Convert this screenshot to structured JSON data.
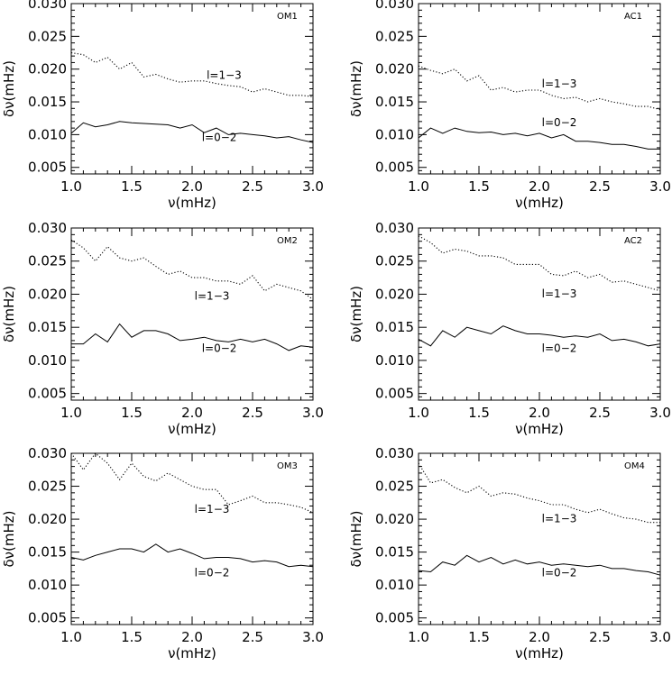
{
  "figure": {
    "x_axis_label": "ν(mHz)",
    "y_axis_label": "δν(mHz)"
  },
  "chart_data": [
    {
      "type": "line",
      "panel_label": "OM1",
      "xlim": [
        1.0,
        3.0
      ],
      "ylim": [
        0.004,
        0.03
      ],
      "xticks": [
        "1.0",
        "1.5",
        "2.0",
        "2.5",
        "3.0"
      ],
      "yticks": [
        "0.005",
        "0.010",
        "0.015",
        "0.020",
        "0.025",
        "0.030"
      ],
      "series": [
        {
          "name": "l=1−3",
          "style": "dotted",
          "x": [
            1.0,
            1.1,
            1.2,
            1.3,
            1.4,
            1.5,
            1.6,
            1.7,
            1.8,
            1.9,
            2.0,
            2.1,
            2.2,
            2.3,
            2.4,
            2.5,
            2.6,
            2.7,
            2.8,
            2.9,
            3.0
          ],
          "y": [
            0.0225,
            0.0222,
            0.021,
            0.0218,
            0.02,
            0.021,
            0.0188,
            0.0192,
            0.0185,
            0.018,
            0.0182,
            0.0182,
            0.0178,
            0.0175,
            0.0173,
            0.0165,
            0.017,
            0.0165,
            0.016,
            0.016,
            0.0158
          ],
          "label_at": [
            2.12,
            0.0185
          ]
        },
        {
          "name": "l=0−2",
          "style": "solid",
          "x": [
            1.0,
            1.1,
            1.2,
            1.3,
            1.4,
            1.5,
            1.6,
            1.7,
            1.8,
            1.9,
            2.0,
            2.1,
            2.2,
            2.3,
            2.4,
            2.5,
            2.6,
            2.7,
            2.8,
            2.9,
            3.0
          ],
          "y": [
            0.0102,
            0.0118,
            0.0112,
            0.0115,
            0.012,
            0.0118,
            0.0117,
            0.0116,
            0.0115,
            0.011,
            0.0115,
            0.0103,
            0.011,
            0.01,
            0.0102,
            0.01,
            0.0098,
            0.0095,
            0.0097,
            0.0092,
            0.0088
          ],
          "label_at": [
            2.08,
            0.009
          ]
        }
      ]
    },
    {
      "type": "line",
      "panel_label": "AC1",
      "xlim": [
        1.0,
        3.0
      ],
      "ylim": [
        0.004,
        0.03
      ],
      "xticks": [
        "1.0",
        "1.5",
        "2.0",
        "2.5",
        "3.0"
      ],
      "yticks": [
        "0.005",
        "0.010",
        "0.015",
        "0.020",
        "0.025",
        "0.030"
      ],
      "series": [
        {
          "name": "l=1−3",
          "style": "dotted",
          "x": [
            1.0,
            1.1,
            1.2,
            1.3,
            1.4,
            1.5,
            1.6,
            1.7,
            1.8,
            1.9,
            2.0,
            2.1,
            2.2,
            2.3,
            2.4,
            2.5,
            2.6,
            2.7,
            2.8,
            2.9,
            3.0
          ],
          "y": [
            0.0205,
            0.0198,
            0.0193,
            0.02,
            0.0182,
            0.019,
            0.0168,
            0.0172,
            0.0165,
            0.0168,
            0.0168,
            0.016,
            0.0155,
            0.0157,
            0.015,
            0.0155,
            0.015,
            0.0147,
            0.0143,
            0.0143,
            0.0138
          ],
          "label_at": [
            2.02,
            0.0172
          ]
        },
        {
          "name": "l=0−2",
          "style": "solid",
          "x": [
            1.0,
            1.1,
            1.2,
            1.3,
            1.4,
            1.5,
            1.6,
            1.7,
            1.8,
            1.9,
            2.0,
            2.1,
            2.2,
            2.3,
            2.4,
            2.5,
            2.6,
            2.7,
            2.8,
            2.9,
            3.0
          ],
          "y": [
            0.0095,
            0.011,
            0.0102,
            0.011,
            0.0105,
            0.0103,
            0.0104,
            0.01,
            0.0102,
            0.0098,
            0.0102,
            0.0095,
            0.01,
            0.009,
            0.009,
            0.0088,
            0.0085,
            0.0085,
            0.0082,
            0.0078,
            0.0078
          ],
          "label_at": [
            2.02,
            0.0113
          ]
        }
      ]
    },
    {
      "type": "line",
      "panel_label": "OM2",
      "xlim": [
        1.0,
        3.0
      ],
      "ylim": [
        0.004,
        0.03
      ],
      "xticks": [
        "1.0",
        "1.5",
        "2.0",
        "2.5",
        "3.0"
      ],
      "yticks": [
        "0.005",
        "0.010",
        "0.015",
        "0.020",
        "0.025",
        "0.030"
      ],
      "series": [
        {
          "name": "l=1−3",
          "style": "dotted",
          "x": [
            1.0,
            1.1,
            1.2,
            1.3,
            1.4,
            1.5,
            1.6,
            1.7,
            1.8,
            1.9,
            2.0,
            2.1,
            2.2,
            2.3,
            2.4,
            2.5,
            2.6,
            2.7,
            2.8,
            2.9,
            3.0
          ],
          "y": [
            0.0282,
            0.027,
            0.025,
            0.0272,
            0.0255,
            0.025,
            0.0255,
            0.0242,
            0.023,
            0.0235,
            0.0225,
            0.0225,
            0.022,
            0.022,
            0.0215,
            0.0228,
            0.0205,
            0.0215,
            0.021,
            0.0205,
            0.0192
          ],
          "label_at": [
            2.02,
            0.0192
          ]
        },
        {
          "name": "l=0−2",
          "style": "solid",
          "x": [
            1.0,
            1.1,
            1.2,
            1.3,
            1.4,
            1.5,
            1.6,
            1.7,
            1.8,
            1.9,
            2.0,
            2.1,
            2.2,
            2.3,
            2.4,
            2.5,
            2.6,
            2.7,
            2.8,
            2.9,
            3.0
          ],
          "y": [
            0.0125,
            0.0125,
            0.014,
            0.0128,
            0.0155,
            0.0135,
            0.0145,
            0.0145,
            0.014,
            0.013,
            0.0132,
            0.0135,
            0.013,
            0.0128,
            0.0132,
            0.0128,
            0.0132,
            0.0125,
            0.0115,
            0.0122,
            0.012
          ],
          "label_at": [
            2.08,
            0.0113
          ]
        }
      ]
    },
    {
      "type": "line",
      "panel_label": "AC2",
      "xlim": [
        1.0,
        3.0
      ],
      "ylim": [
        0.004,
        0.03
      ],
      "xticks": [
        "1.0",
        "1.5",
        "2.0",
        "2.5",
        "3.0"
      ],
      "yticks": [
        "0.005",
        "0.010",
        "0.015",
        "0.020",
        "0.025",
        "0.030"
      ],
      "series": [
        {
          "name": "l=1−3",
          "style": "dotted",
          "x": [
            1.0,
            1.1,
            1.2,
            1.3,
            1.4,
            1.5,
            1.6,
            1.7,
            1.8,
            1.9,
            2.0,
            2.1,
            2.2,
            2.3,
            2.4,
            2.5,
            2.6,
            2.7,
            2.8,
            2.9,
            3.0
          ],
          "y": [
            0.0288,
            0.0278,
            0.0262,
            0.0268,
            0.0265,
            0.0258,
            0.0258,
            0.0255,
            0.0245,
            0.0245,
            0.0245,
            0.023,
            0.0228,
            0.0235,
            0.0225,
            0.023,
            0.0218,
            0.022,
            0.0215,
            0.021,
            0.0205
          ],
          "label_at": [
            2.02,
            0.0195
          ]
        },
        {
          "name": "l=0−2",
          "style": "solid",
          "x": [
            1.0,
            1.1,
            1.2,
            1.3,
            1.4,
            1.5,
            1.6,
            1.7,
            1.8,
            1.9,
            2.0,
            2.1,
            2.2,
            2.3,
            2.4,
            2.5,
            2.6,
            2.7,
            2.8,
            2.9,
            3.0
          ],
          "y": [
            0.0132,
            0.0122,
            0.0145,
            0.0135,
            0.015,
            0.0145,
            0.014,
            0.0152,
            0.0145,
            0.014,
            0.014,
            0.0138,
            0.0135,
            0.0137,
            0.0135,
            0.014,
            0.013,
            0.0132,
            0.0128,
            0.0122,
            0.0125
          ],
          "label_at": [
            2.02,
            0.0113
          ]
        }
      ]
    },
    {
      "type": "line",
      "panel_label": "OM3",
      "xlim": [
        1.0,
        3.0
      ],
      "ylim": [
        0.004,
        0.03
      ],
      "xticks": [
        "1.0",
        "1.5",
        "2.0",
        "2.5",
        "3.0"
      ],
      "yticks": [
        "0.005",
        "0.010",
        "0.015",
        "0.020",
        "0.025",
        "0.030"
      ],
      "series": [
        {
          "name": "l=1−3",
          "style": "dotted",
          "x": [
            1.0,
            1.1,
            1.2,
            1.3,
            1.4,
            1.5,
            1.6,
            1.7,
            1.8,
            1.9,
            2.0,
            2.1,
            2.2,
            2.3,
            2.4,
            2.5,
            2.6,
            2.7,
            2.8,
            2.9,
            3.0
          ],
          "y": [
            0.03,
            0.0275,
            0.03,
            0.0285,
            0.026,
            0.0285,
            0.0265,
            0.0258,
            0.027,
            0.026,
            0.025,
            0.0245,
            0.0245,
            0.0222,
            0.0228,
            0.0235,
            0.0225,
            0.0225,
            0.0222,
            0.0218,
            0.021
          ],
          "label_at": [
            2.02,
            0.021
          ]
        },
        {
          "name": "l=0−2",
          "style": "solid",
          "x": [
            1.0,
            1.1,
            1.2,
            1.3,
            1.4,
            1.5,
            1.6,
            1.7,
            1.8,
            1.9,
            2.0,
            2.1,
            2.2,
            2.3,
            2.4,
            2.5,
            2.6,
            2.7,
            2.8,
            2.9,
            3.0
          ],
          "y": [
            0.0142,
            0.0138,
            0.0145,
            0.015,
            0.0155,
            0.0155,
            0.015,
            0.0162,
            0.015,
            0.0155,
            0.0148,
            0.014,
            0.0142,
            0.0142,
            0.014,
            0.0135,
            0.0137,
            0.0135,
            0.0128,
            0.013,
            0.0128
          ],
          "label_at": [
            2.02,
            0.0113
          ]
        }
      ]
    },
    {
      "type": "line",
      "panel_label": "OM4",
      "xlim": [
        1.0,
        3.0
      ],
      "ylim": [
        0.004,
        0.03
      ],
      "xticks": [
        "1.0",
        "1.5",
        "2.0",
        "2.5",
        "3.0"
      ],
      "yticks": [
        "0.005",
        "0.010",
        "0.015",
        "0.020",
        "0.025",
        "0.030"
      ],
      "series": [
        {
          "name": "l=1−3",
          "style": "dotted",
          "x": [
            1.0,
            1.1,
            1.2,
            1.3,
            1.4,
            1.5,
            1.6,
            1.7,
            1.8,
            1.9,
            2.0,
            2.1,
            2.2,
            2.3,
            2.4,
            2.5,
            2.6,
            2.7,
            2.8,
            2.9,
            3.0
          ],
          "y": [
            0.0285,
            0.0255,
            0.026,
            0.0248,
            0.024,
            0.025,
            0.0235,
            0.024,
            0.0238,
            0.0232,
            0.0228,
            0.0222,
            0.0222,
            0.0215,
            0.021,
            0.0215,
            0.0208,
            0.0202,
            0.02,
            0.0195,
            0.0195
          ],
          "label_at": [
            2.02,
            0.0195
          ]
        },
        {
          "name": "l=0−2",
          "style": "solid",
          "x": [
            1.0,
            1.1,
            1.2,
            1.3,
            1.4,
            1.5,
            1.6,
            1.7,
            1.8,
            1.9,
            2.0,
            2.1,
            2.2,
            2.3,
            2.4,
            2.5,
            2.6,
            2.7,
            2.8,
            2.9,
            3.0
          ],
          "y": [
            0.0122,
            0.012,
            0.0135,
            0.013,
            0.0145,
            0.0135,
            0.0142,
            0.0132,
            0.0138,
            0.0132,
            0.0135,
            0.013,
            0.0132,
            0.013,
            0.0128,
            0.013,
            0.0125,
            0.0125,
            0.0122,
            0.012,
            0.0115
          ],
          "label_at": [
            2.02,
            0.0113
          ]
        }
      ]
    }
  ]
}
